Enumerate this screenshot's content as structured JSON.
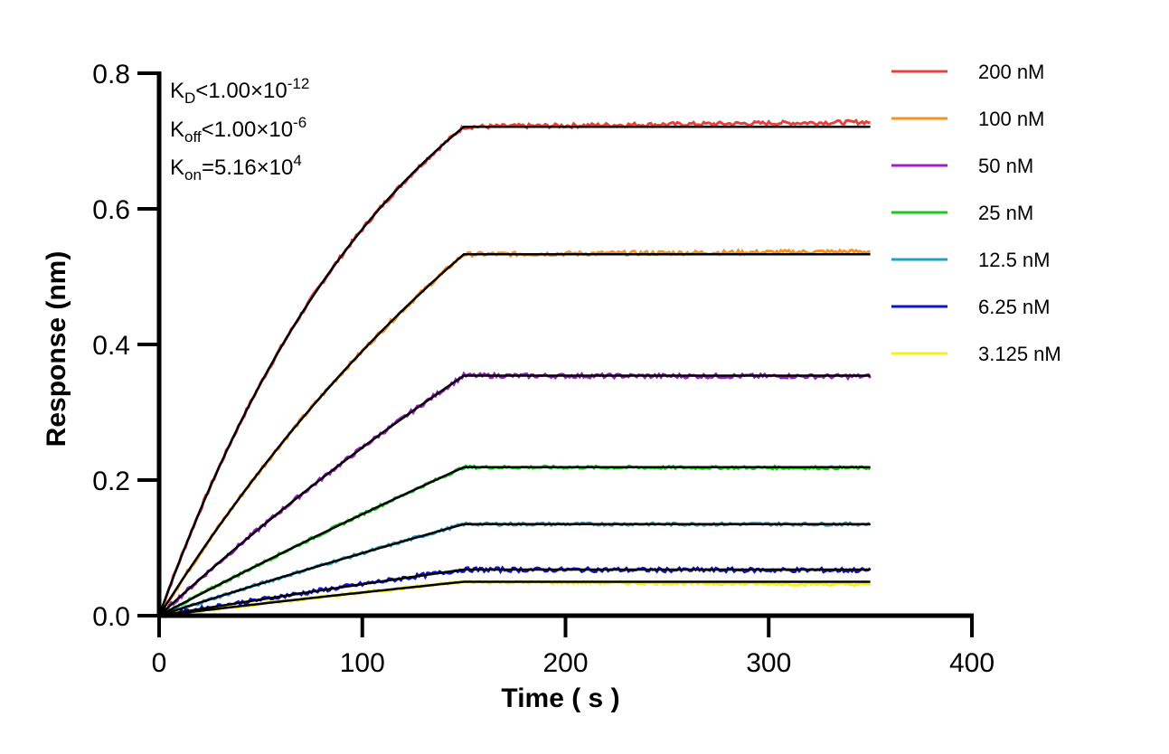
{
  "chart_data": {
    "type": "line",
    "xlabel": "Time ( s )",
    "ylabel": "Response (nm)",
    "xlim": [
      0,
      400
    ],
    "ylim": [
      0,
      0.8
    ],
    "x_ticks": [
      "0",
      "100",
      "200",
      "300",
      "400"
    ],
    "y_ticks": [
      "0.0",
      "0.2",
      "0.4",
      "0.6",
      "0.8"
    ],
    "grid": false,
    "legend_position": "top-right",
    "annotations": {
      "kd": {
        "symbol": "K",
        "sub": "D",
        "text": "<1.00×10",
        "sup": "-12"
      },
      "koff": {
        "symbol": "K",
        "sub": "off",
        "text": "<1.00×10",
        "sup": "-6"
      },
      "kon": {
        "symbol": "K",
        "sub": "on",
        "text": "=5.16×10",
        "sup": "4"
      }
    },
    "association_end": 150,
    "x_end": 350,
    "fit_color": "#000000",
    "series": [
      {
        "name": "200 nM",
        "color": "#e8413c",
        "plateau": 0.721,
        "final": 0.728,
        "noise": 0.003
      },
      {
        "name": "100 nM",
        "color": "#f7921e",
        "plateau": 0.533,
        "final": 0.537,
        "noise": 0.003
      },
      {
        "name": "50 nM",
        "color": "#a020c8",
        "plateau": 0.354,
        "final": 0.353,
        "noise": 0.003
      },
      {
        "name": "25 nM",
        "color": "#1ec81e",
        "plateau": 0.219,
        "final": 0.218,
        "noise": 0.002
      },
      {
        "name": "12.5 nM",
        "color": "#1ea0c8",
        "plateau": 0.135,
        "final": 0.135,
        "noise": 0.002
      },
      {
        "name": "6.25 nM",
        "color": "#0a14d2",
        "plateau": 0.068,
        "final": 0.067,
        "noise": 0.003
      },
      {
        "name": "3.125 nM",
        "color": "#f5f01e",
        "plateau": 0.05,
        "final": 0.046,
        "noise": 0.002
      }
    ]
  }
}
